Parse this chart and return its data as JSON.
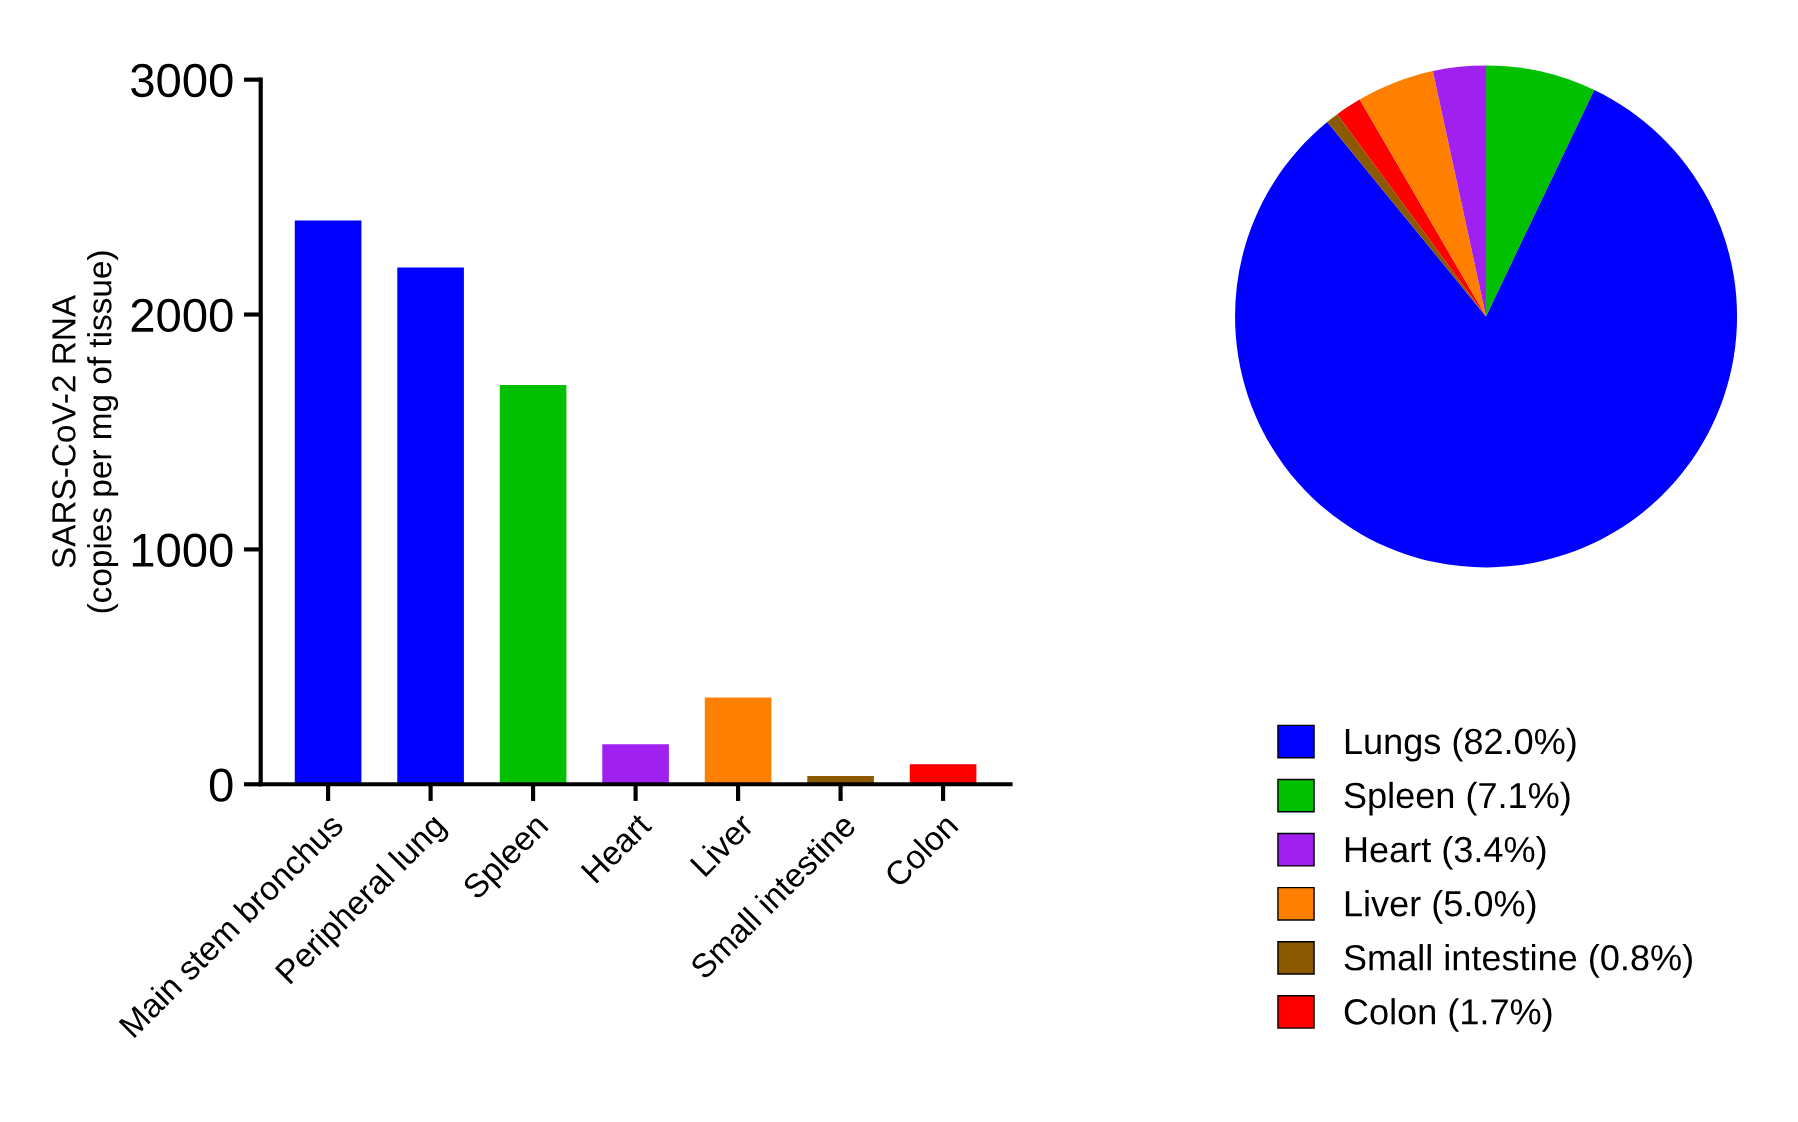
{
  "chart_data": [
    {
      "type": "bar",
      "ylabel": "SARS-CoV-2 RNA\n(copies per mg of tissue)",
      "categories": [
        "Main stem bronchus",
        "Peripheral lung",
        "Spleen",
        "Heart",
        "Liver",
        "Small intestine",
        "Colon"
      ],
      "values": [
        2400,
        2200,
        1700,
        170,
        370,
        35,
        85
      ],
      "colors": [
        "#0000ff",
        "#0000ff",
        "#00c000",
        "#a020f0",
        "#ff8000",
        "#8b5a00",
        "#ff0000"
      ],
      "ylim": [
        0,
        3000
      ],
      "yticks": [
        0,
        1000,
        2000,
        3000
      ],
      "grid": false,
      "legend": false
    },
    {
      "type": "pie",
      "categories": [
        "Spleen (7.1%)",
        "Lungs (82.0%)",
        "Small intestine (0.8%)",
        "Colon (1.7%)",
        "Liver (5.0%)",
        "Heart (3.4%)"
      ],
      "values": [
        7.1,
        82.0,
        0.8,
        1.7,
        5.0,
        3.4
      ],
      "colors": [
        "#00c000",
        "#0000ff",
        "#8b5a00",
        "#ff0000",
        "#ff8000",
        "#a020f0"
      ],
      "legend": "bottom"
    }
  ]
}
